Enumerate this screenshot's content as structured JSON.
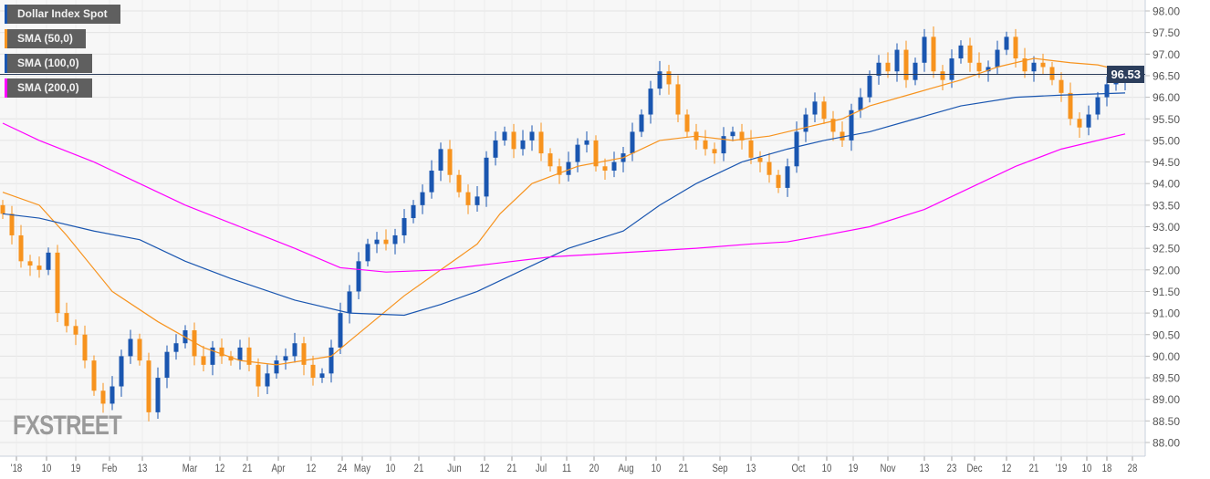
{
  "legend": [
    {
      "label": "Dollar Index Spot",
      "color": "#1a56b0"
    },
    {
      "label": "SMA (50,0)",
      "color": "#f7931e"
    },
    {
      "label": "SMA (100,0)",
      "color": "#1a56b0"
    },
    {
      "label": "SMA (200,0)",
      "color": "#ff00ff"
    }
  ],
  "logo": "FXSTREET",
  "last_price": "96.53",
  "colors": {
    "up": "#1a56b0",
    "down": "#f7931e",
    "sma50": "#f7931e",
    "sma100": "#1a56b0",
    "sma200": "#ff00ff",
    "last_line": "#2c3e5c",
    "grid": "#e3e3e3"
  },
  "chart_data": {
    "type": "candlestick",
    "title": "Dollar Index Spot",
    "ylim": [
      88.0,
      98.0
    ],
    "yticks": [
      "98.00",
      "97.50",
      "97.00",
      "96.50",
      "96.00",
      "95.50",
      "95.00",
      "94.50",
      "94.00",
      "93.50",
      "93.00",
      "92.50",
      "92.00",
      "91.50",
      "91.00",
      "90.50",
      "90.00",
      "89.50",
      "89.00",
      "88.50",
      "88.00"
    ],
    "xticks": [
      {
        "label": "'18",
        "t": 1.5
      },
      {
        "label": "10",
        "t": 4.8
      },
      {
        "label": "19",
        "t": 8
      },
      {
        "label": "Feb",
        "t": 11.7
      },
      {
        "label": "13",
        "t": 15.3
      },
      {
        "label": "Mar",
        "t": 20.5
      },
      {
        "label": "12",
        "t": 23.8
      },
      {
        "label": "21",
        "t": 26.8
      },
      {
        "label": "Apr",
        "t": 30.2
      },
      {
        "label": "12",
        "t": 33.8
      },
      {
        "label": "24",
        "t": 37.2
      },
      {
        "label": "May",
        "t": 39.4
      },
      {
        "label": "10",
        "t": 42.5
      },
      {
        "label": "21",
        "t": 45.6
      },
      {
        "label": "Jun",
        "t": 49.5
      },
      {
        "label": "12",
        "t": 52.8
      },
      {
        "label": "21",
        "t": 55.8
      },
      {
        "label": "Jul",
        "t": 59
      },
      {
        "label": "11",
        "t": 61.8
      },
      {
        "label": "20",
        "t": 64.8
      },
      {
        "label": "Aug",
        "t": 68.3
      },
      {
        "label": "10",
        "t": 71.6
      },
      {
        "label": "21",
        "t": 74.6
      },
      {
        "label": "Sep",
        "t": 78.6
      },
      {
        "label": "13",
        "t": 82
      },
      {
        "label": "Oct",
        "t": 87.2
      },
      {
        "label": "10",
        "t": 90.3
      },
      {
        "label": "19",
        "t": 93.2
      },
      {
        "label": "Nov",
        "t": 97
      },
      {
        "label": "13",
        "t": 101
      },
      {
        "label": "23",
        "t": 104
      },
      {
        "label": "Dec",
        "t": 106.5
      },
      {
        "label": "12",
        "t": 110
      },
      {
        "label": "21",
        "t": 113
      },
      {
        "label": "'19",
        "t": 116
      },
      {
        "label": "10",
        "t": 118.8
      },
      {
        "label": "18",
        "t": 121
      },
      {
        "label": "28",
        "t": 123.8
      }
    ],
    "close": [
      93.3,
      92.8,
      92.2,
      92.1,
      92.0,
      92.4,
      91.0,
      90.7,
      90.5,
      89.9,
      89.2,
      88.9,
      89.3,
      90.0,
      90.4,
      89.9,
      88.7,
      89.5,
      90.1,
      90.3,
      90.6,
      90.0,
      89.8,
      90.2,
      90.0,
      89.9,
      90.2,
      89.8,
      89.3,
      89.6,
      89.9,
      90.0,
      90.3,
      89.8,
      89.5,
      89.6,
      90.2,
      91.0,
      91.5,
      92.2,
      92.6,
      92.7,
      92.6,
      92.8,
      93.2,
      93.5,
      93.8,
      94.3,
      94.8,
      94.2,
      93.8,
      93.5,
      93.7,
      94.6,
      95.0,
      95.2,
      94.8,
      95.0,
      95.2,
      94.7,
      94.4,
      94.2,
      94.5,
      94.9,
      95.0,
      94.4,
      94.3,
      94.5,
      94.7,
      95.2,
      95.6,
      96.2,
      96.6,
      96.3,
      95.6,
      95.2,
      95.0,
      94.8,
      94.7,
      95.1,
      95.2,
      95.0,
      94.6,
      94.5,
      94.2,
      93.9,
      94.4,
      95.2,
      95.6,
      95.9,
      95.5,
      95.2,
      95.0,
      95.7,
      96.0,
      96.5,
      96.8,
      96.6,
      97.1,
      96.4,
      96.8,
      97.4,
      96.6,
      96.4,
      96.9,
      97.2,
      96.8,
      96.6,
      96.7,
      97.1,
      97.4,
      96.9,
      96.6,
      96.8,
      96.7,
      96.4,
      96.1,
      95.5,
      95.3,
      95.6,
      96.0,
      96.3,
      96.4,
      96.53
    ],
    "series": [
      {
        "name": "SMA (50,0)",
        "points": [
          [
            0,
            93.8
          ],
          [
            4,
            93.5
          ],
          [
            7,
            92.8
          ],
          [
            12,
            91.5
          ],
          [
            17,
            90.8
          ],
          [
            22,
            90.2
          ],
          [
            26,
            89.9
          ],
          [
            30,
            89.8
          ],
          [
            33,
            89.9
          ],
          [
            36,
            90.0
          ],
          [
            40,
            90.7
          ],
          [
            44,
            91.4
          ],
          [
            48,
            92.0
          ],
          [
            52,
            92.6
          ],
          [
            54.5,
            93.3
          ],
          [
            58,
            94.0
          ],
          [
            63,
            94.4
          ],
          [
            68,
            94.6
          ],
          [
            72,
            95.0
          ],
          [
            76,
            95.1
          ],
          [
            80,
            95.0
          ],
          [
            84,
            95.1
          ],
          [
            86,
            95.2
          ],
          [
            90,
            95.4
          ],
          [
            92,
            95.5
          ],
          [
            95,
            95.8
          ],
          [
            100,
            96.1
          ],
          [
            105,
            96.4
          ],
          [
            109,
            96.7
          ],
          [
            113,
            96.9
          ],
          [
            117,
            96.8
          ],
          [
            120,
            96.75
          ],
          [
            123,
            96.6
          ]
        ]
      },
      {
        "name": "SMA (100,0)",
        "points": [
          [
            0,
            93.3
          ],
          [
            4,
            93.2
          ],
          [
            10,
            92.9
          ],
          [
            15,
            92.7
          ],
          [
            20,
            92.2
          ],
          [
            25,
            91.8
          ],
          [
            32,
            91.3
          ],
          [
            38,
            91.0
          ],
          [
            44,
            90.95
          ],
          [
            48,
            91.2
          ],
          [
            52,
            91.5
          ],
          [
            57,
            92.0
          ],
          [
            62,
            92.5
          ],
          [
            68,
            92.9
          ],
          [
            72,
            93.5
          ],
          [
            76,
            94.0
          ],
          [
            81,
            94.5
          ],
          [
            86,
            94.8
          ],
          [
            90,
            95.0
          ],
          [
            95,
            95.2
          ],
          [
            100,
            95.5
          ],
          [
            105,
            95.8
          ],
          [
            111,
            96.0
          ],
          [
            116,
            96.05
          ],
          [
            123,
            96.1
          ]
        ]
      },
      {
        "name": "SMA (200,0)",
        "points": [
          [
            0,
            95.4
          ],
          [
            4,
            95.0
          ],
          [
            10,
            94.5
          ],
          [
            15,
            94.0
          ],
          [
            20,
            93.5
          ],
          [
            26,
            93.0
          ],
          [
            32,
            92.5
          ],
          [
            37,
            92.05
          ],
          [
            42,
            91.95
          ],
          [
            48,
            92.0
          ],
          [
            54,
            92.15
          ],
          [
            60,
            92.3
          ],
          [
            68,
            92.4
          ],
          [
            76,
            92.5
          ],
          [
            82,
            92.6
          ],
          [
            86,
            92.65
          ],
          [
            90,
            92.8
          ],
          [
            95,
            93.0
          ],
          [
            101,
            93.4
          ],
          [
            106,
            93.9
          ],
          [
            111,
            94.4
          ],
          [
            116,
            94.8
          ],
          [
            123,
            95.15
          ]
        ]
      }
    ]
  }
}
